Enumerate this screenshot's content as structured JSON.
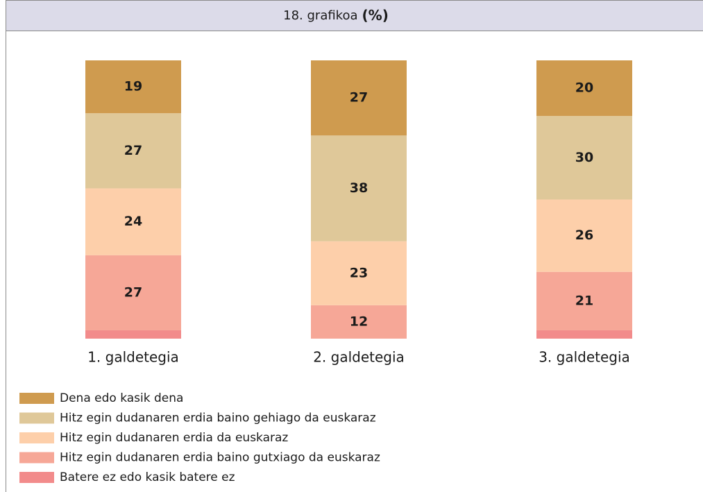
{
  "chart_data": {
    "type": "stacked-bar",
    "title": "18. grafikoa",
    "unit": "(%)",
    "categories": [
      "1. galdetegia",
      "2. galdetegia",
      "3. galdetegia"
    ],
    "ylim": [
      0,
      100
    ],
    "series": [
      {
        "name": "Dena edo kasik dena",
        "color": "#cf9b4f",
        "values": [
          19,
          27,
          20
        ]
      },
      {
        "name": "Hitz egin dudanaren erdia baino gehiago da euskaraz",
        "color": "#dfc899",
        "values": [
          27,
          38,
          30
        ]
      },
      {
        "name": "Hitz egin dudanaren erdia da euskaraz",
        "color": "#fdcfaa",
        "values": [
          24,
          23,
          26
        ]
      },
      {
        "name": "Hitz egin dudanaren erdia baino gutxiago da euskaraz",
        "color": "#f6a797",
        "values": [
          27,
          12,
          21
        ]
      },
      {
        "name": "Batere ez edo kasik batere ez",
        "color": "#f28b8b",
        "values": [
          3,
          0,
          3
        ]
      }
    ]
  }
}
